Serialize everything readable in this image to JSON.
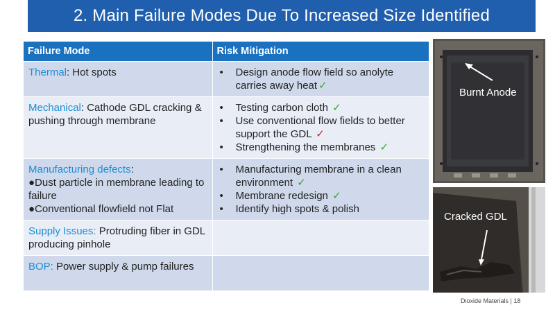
{
  "title": "2.  Main Failure Modes Due To Increased Size Identified",
  "table": {
    "headers": [
      "Failure Mode",
      "Risk Mitigation"
    ],
    "rows": [
      {
        "mode": {
          "name": "Thermal",
          "detail": ": Hot spots",
          "subitems": []
        },
        "mitigations": [
          {
            "text": "Design anode flow field so anolyte carries away heat",
            "check": "✓",
            "check_color": "#3aa52f"
          }
        ]
      },
      {
        "mode": {
          "name": "Mechanical",
          "detail": ": Cathode GDL cracking & pushing through membrane",
          "subitems": []
        },
        "mitigations": [
          {
            "text": "Testing carbon cloth ",
            "check": "✓",
            "check_color": "#3aa52f"
          },
          {
            "text": "Use conventional flow fields to better support the GDL ",
            "check": "✓",
            "check_color": "#d62424"
          },
          {
            "text": "Strengthening the membranes ",
            "check": "✓",
            "check_color": "#3aa52f"
          }
        ]
      },
      {
        "mode": {
          "name": "Manufacturing defects",
          "detail": ":",
          "subitems": [
            "●Dust particle in membrane leading to failure",
            "●Conventional flowfield not Flat"
          ]
        },
        "mitigations": [
          {
            "text": "Manufacturing membrane in a clean environment ",
            "check": "✓",
            "check_color": "#3aa52f"
          },
          {
            "text": "Membrane redesign ",
            "check": "✓",
            "check_color": "#3aa52f"
          },
          {
            "text": "Identify high spots & polish",
            "check": "",
            "check_color": ""
          }
        ]
      },
      {
        "mode": {
          "name": "Supply Issues:",
          "detail": " Protruding fiber in GDL producing pinhole",
          "subitems": []
        },
        "mitigations": []
      },
      {
        "mode": {
          "name": "BOP:",
          "detail": " Power supply & pump failures",
          "subitems": []
        },
        "mitigations": []
      }
    ]
  },
  "photos": {
    "top_caption": "Burnt Anode",
    "bottom_caption": "Cracked GDL"
  },
  "footer": "Dioxide Materials   |   18"
}
